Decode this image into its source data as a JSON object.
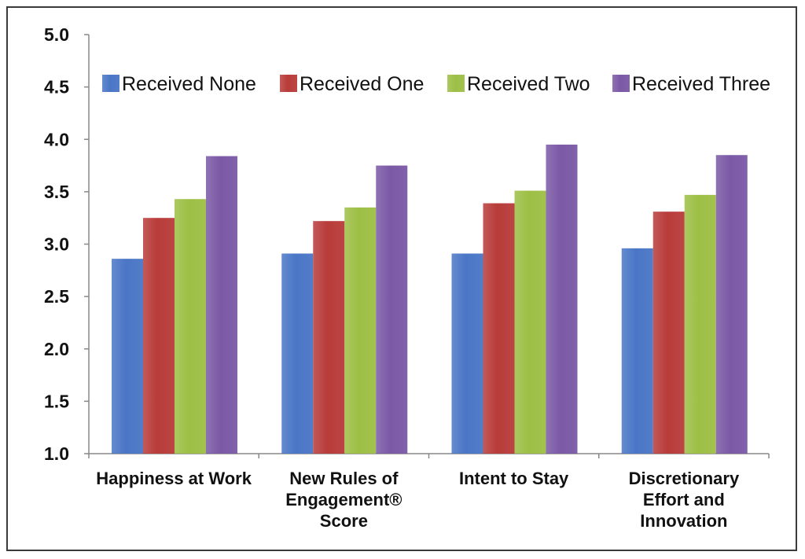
{
  "chart_data": {
    "type": "bar",
    "categories": [
      [
        "Happiness at Work"
      ],
      [
        "New Rules of",
        "Engagement®",
        "Score"
      ],
      [
        "Intent to Stay"
      ],
      [
        "Discretionary",
        "Effort and",
        "Innovation"
      ]
    ],
    "series": [
      {
        "name": "Received None",
        "color": "#4a76c6",
        "values": [
          2.86,
          2.91,
          2.91,
          2.96
        ]
      },
      {
        "name": "Received One",
        "color": "#b83c3a",
        "values": [
          3.25,
          3.22,
          3.39,
          3.31
        ]
      },
      {
        "name": "Received Two",
        "color": "#9dbf45",
        "values": [
          3.43,
          3.35,
          3.51,
          3.47
        ]
      },
      {
        "name": "Received Three",
        "color": "#7b59a6",
        "values": [
          3.84,
          3.75,
          3.95,
          3.85
        ]
      }
    ],
    "ylim": [
      1.0,
      5.0
    ],
    "yticks": [
      "1.0",
      "1.5",
      "2.0",
      "2.5",
      "3.0",
      "3.5",
      "4.0",
      "4.5",
      "5.0"
    ],
    "legend_position": "top",
    "grid": false
  }
}
